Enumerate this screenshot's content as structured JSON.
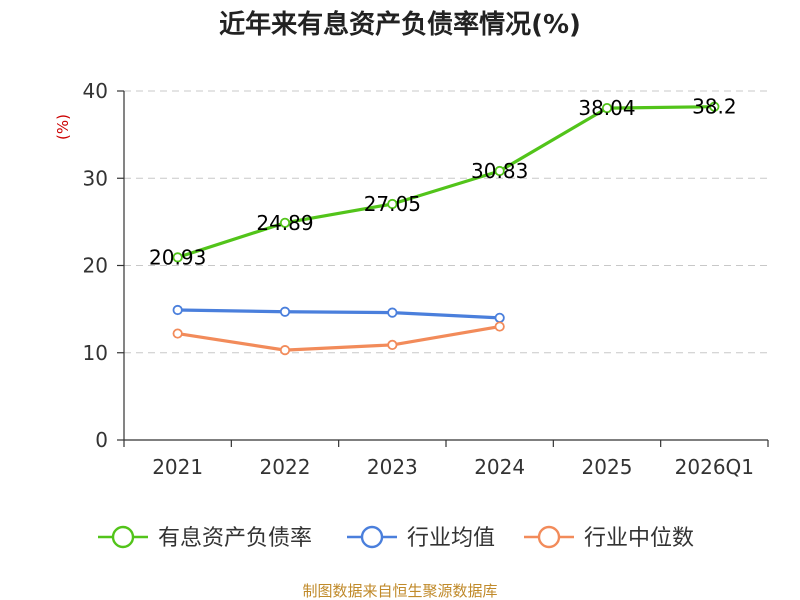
{
  "chart_data": {
    "type": "line",
    "title": "近年来有息资产负债率情况(%)",
    "ylabel": "(%)",
    "categories": [
      "2021",
      "2022",
      "2023",
      "2024",
      "2025",
      "2026Q1"
    ],
    "ylim": [
      0,
      40
    ],
    "yticks": [
      0,
      10,
      20,
      30,
      40
    ],
    "grid": true,
    "legend_position": "bottom",
    "series": [
      {
        "name": "有息资产负债率",
        "color": "#52c41a",
        "values": [
          20.93,
          24.89,
          27.05,
          30.83,
          38.04,
          38.2
        ],
        "labels": [
          "20.93",
          "24.89",
          "27.05",
          "30.83",
          "38.04",
          "38.2"
        ]
      },
      {
        "name": "行业均值",
        "color": "#4a7fdc",
        "values": [
          14.9,
          14.7,
          14.6,
          14.0,
          null,
          null
        ]
      },
      {
        "name": "行业中位数",
        "color": "#f28b5a",
        "values": [
          12.2,
          10.3,
          10.9,
          13.0,
          null,
          null
        ]
      }
    ]
  },
  "footer": {
    "source": "制图数据来自恒生聚源数据库"
  }
}
